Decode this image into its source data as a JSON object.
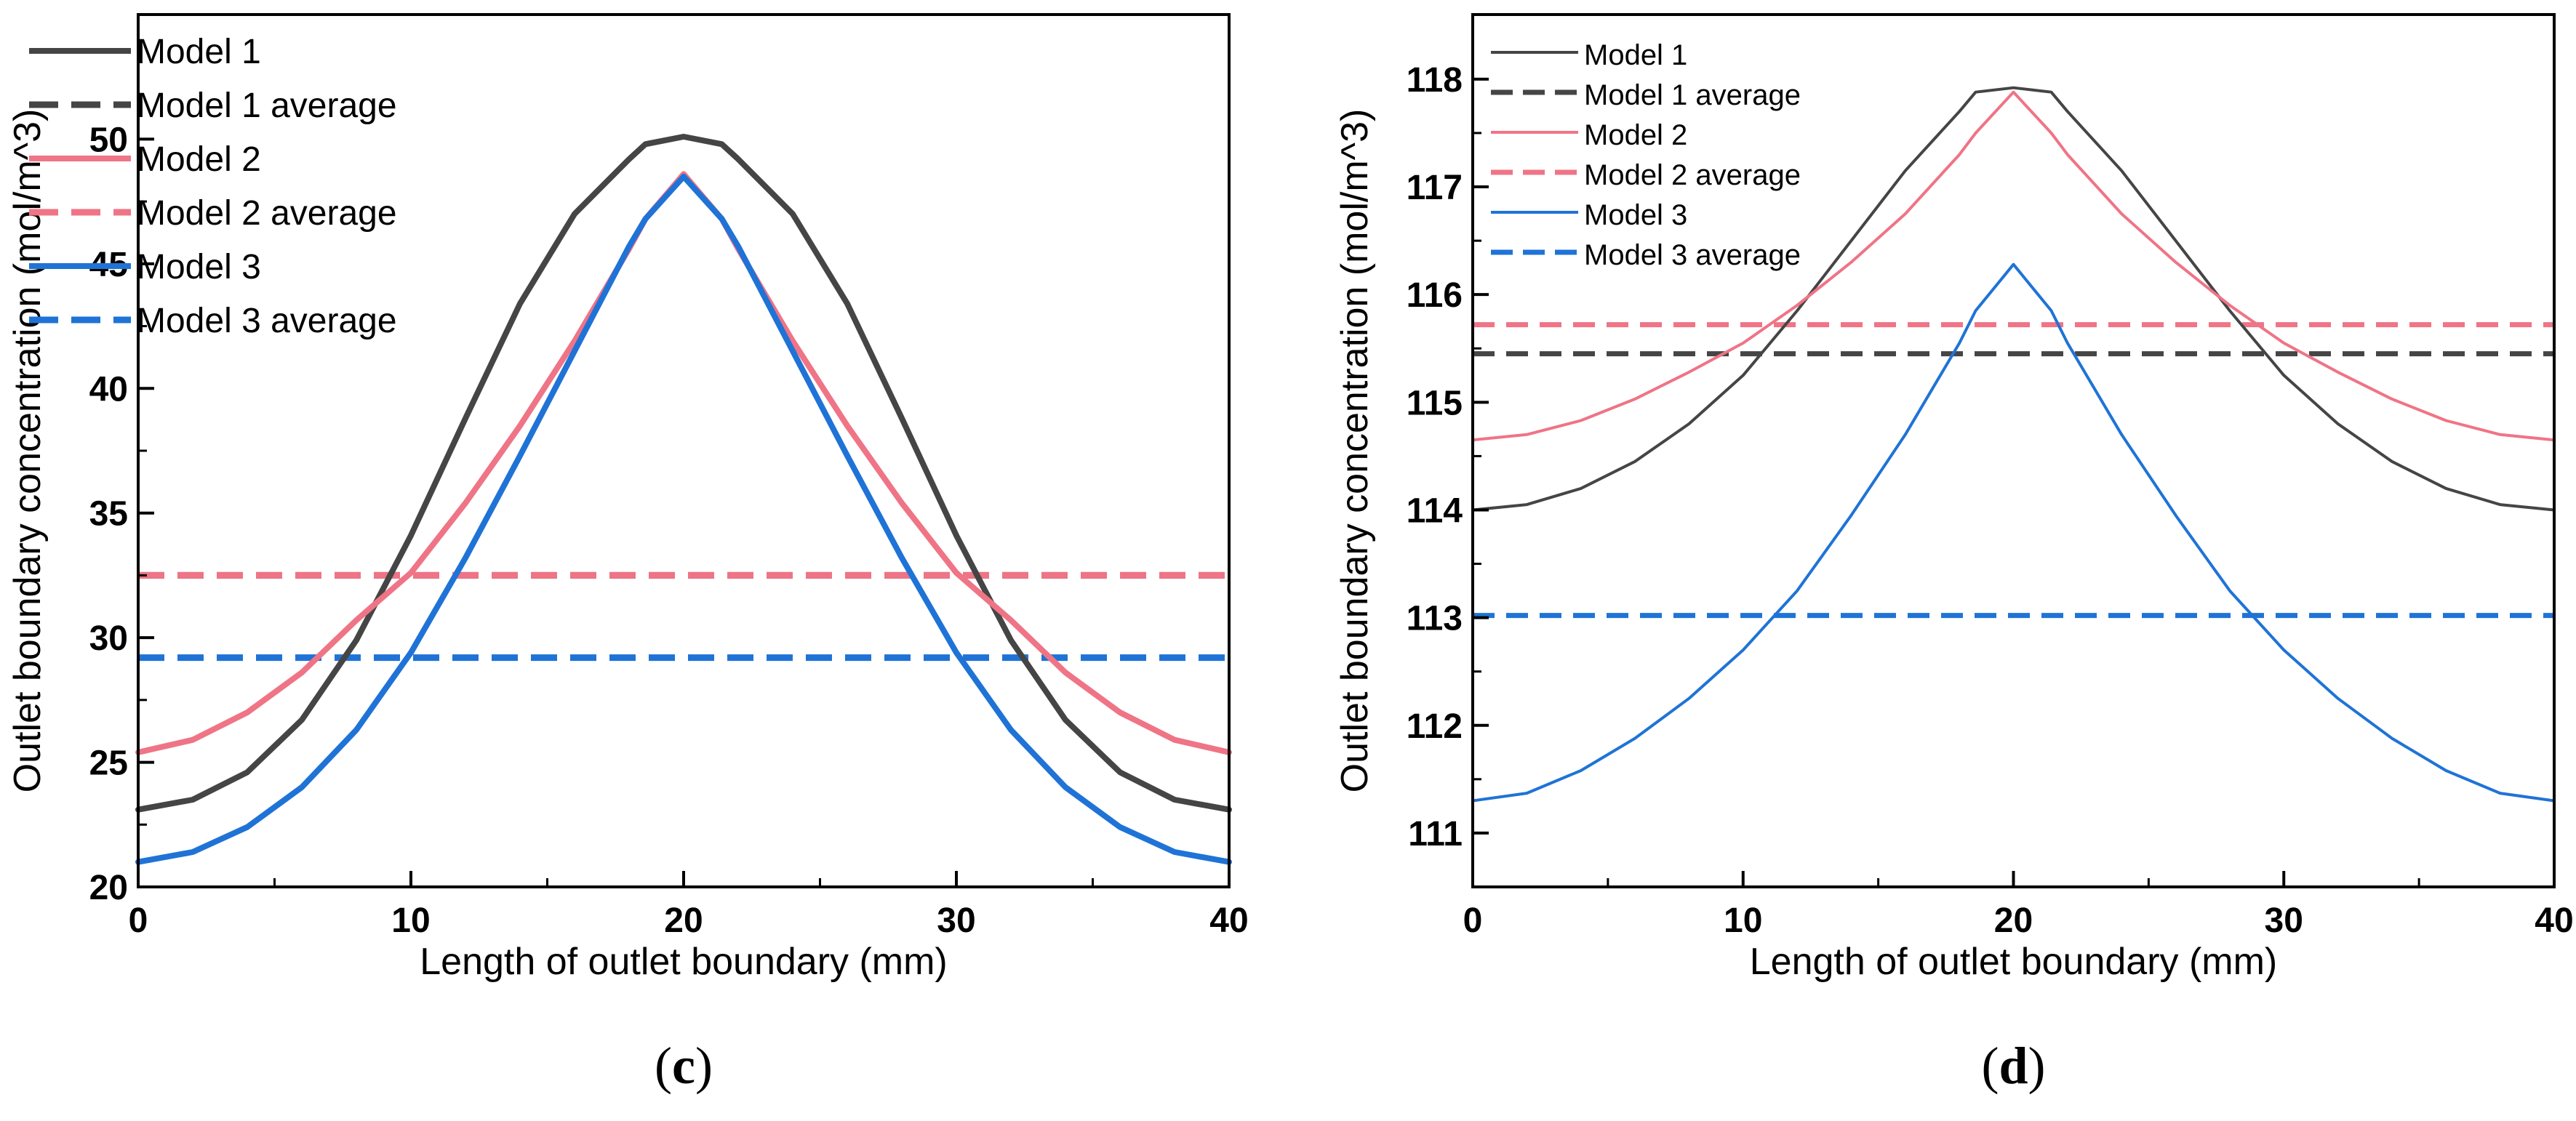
{
  "chart_data": [
    {
      "panel": "(c)",
      "panel_letter": "c",
      "type": "line",
      "xlabel": "Length of outlet boundary (mm)",
      "ylabel": "Outlet boundary concentration (mol/m^3)",
      "xlim": [
        0,
        40
      ],
      "ylim": [
        20,
        55
      ],
      "x_ticks": [
        0,
        10,
        20,
        30,
        40
      ],
      "y_ticks": [
        20,
        25,
        30,
        35,
        40,
        45,
        50
      ],
      "grid": false,
      "legend_position": "top-left",
      "x": [
        0,
        2,
        4,
        6,
        8,
        10,
        12,
        14,
        16,
        18,
        18.6,
        20,
        21.4,
        22,
        24,
        26,
        28,
        30,
        32,
        34,
        36,
        38,
        40
      ],
      "series": [
        {
          "name": "Model 1",
          "style": "solid",
          "color": "#454545",
          "values": [
            23.1,
            23.5,
            24.6,
            26.7,
            29.9,
            34.1,
            38.8,
            43.4,
            47.0,
            49.2,
            49.8,
            50.1,
            49.8,
            49.2,
            47.0,
            43.4,
            38.8,
            34.1,
            29.9,
            26.7,
            24.6,
            23.5,
            23.1
          ]
        },
        {
          "name": "Model 1 average",
          "style": "dashed",
          "color": "#454545",
          "constant": 32.5
        },
        {
          "name": "Model 2",
          "style": "solid",
          "color": "#ef7486",
          "values": [
            25.4,
            25.9,
            27.0,
            28.6,
            30.7,
            32.6,
            35.4,
            38.5,
            41.9,
            45.6,
            46.8,
            48.6,
            46.8,
            45.6,
            41.9,
            38.5,
            35.4,
            32.6,
            30.7,
            28.6,
            27.0,
            25.9,
            25.4
          ]
        },
        {
          "name": "Model 2 average",
          "style": "dashed",
          "color": "#ef7486",
          "constant": 32.5
        },
        {
          "name": "Model 3",
          "style": "solid",
          "color": "#1f73d6",
          "values": [
            21.0,
            21.4,
            22.4,
            24.0,
            26.3,
            29.4,
            33.2,
            37.3,
            41.5,
            45.7,
            46.8,
            48.5,
            46.8,
            45.7,
            41.5,
            37.3,
            33.2,
            29.4,
            26.3,
            24.0,
            22.4,
            21.4,
            21.0
          ]
        },
        {
          "name": "Model 3 average",
          "style": "dashed",
          "color": "#1f73d6",
          "constant": 29.2
        }
      ]
    },
    {
      "panel": "(d)",
      "panel_letter": "d",
      "type": "line",
      "xlabel": "Length of outlet boundary (mm)",
      "ylabel": "Outlet boundary concentration (mol/m^3)",
      "xlim": [
        0,
        40
      ],
      "ylim": [
        110.5,
        118.6
      ],
      "x_ticks": [
        0,
        10,
        20,
        30,
        40
      ],
      "y_ticks": [
        111,
        112,
        113,
        114,
        115,
        116,
        117,
        118
      ],
      "grid": false,
      "legend_position": "top-left",
      "x": [
        0,
        2,
        4,
        6,
        8,
        10,
        12,
        14,
        16,
        18,
        18.6,
        20,
        21.4,
        22,
        24,
        26,
        28,
        30,
        32,
        34,
        36,
        38,
        40
      ],
      "series": [
        {
          "name": "Model 1",
          "style": "solid",
          "color": "#454545",
          "values": [
            114.0,
            114.05,
            114.2,
            114.45,
            114.8,
            115.25,
            115.85,
            116.5,
            117.15,
            117.7,
            117.88,
            117.92,
            117.88,
            117.7,
            117.15,
            116.5,
            115.85,
            115.25,
            114.8,
            114.45,
            114.2,
            114.05,
            114.0
          ]
        },
        {
          "name": "Model 1 average",
          "style": "dashed",
          "color": "#454545",
          "constant": 115.45
        },
        {
          "name": "Model 2",
          "style": "solid",
          "color": "#ef7486",
          "values": [
            114.65,
            114.7,
            114.83,
            115.03,
            115.28,
            115.55,
            115.9,
            116.3,
            116.75,
            117.3,
            117.5,
            117.88,
            117.5,
            117.3,
            116.75,
            116.3,
            115.9,
            115.55,
            115.28,
            115.03,
            114.83,
            114.7,
            114.65
          ]
        },
        {
          "name": "Model 2 average",
          "style": "dashed",
          "color": "#ef7486",
          "constant": 115.72
        },
        {
          "name": "Model 3",
          "style": "solid",
          "color": "#1f73d6",
          "values": [
            111.3,
            111.37,
            111.58,
            111.88,
            112.25,
            112.7,
            113.25,
            113.95,
            114.7,
            115.55,
            115.85,
            116.28,
            115.85,
            115.55,
            114.7,
            113.95,
            113.25,
            112.7,
            112.25,
            111.88,
            111.58,
            111.37,
            111.3
          ]
        },
        {
          "name": "Model 3 average",
          "style": "dashed",
          "color": "#1f73d6",
          "constant": 113.02
        }
      ]
    }
  ]
}
